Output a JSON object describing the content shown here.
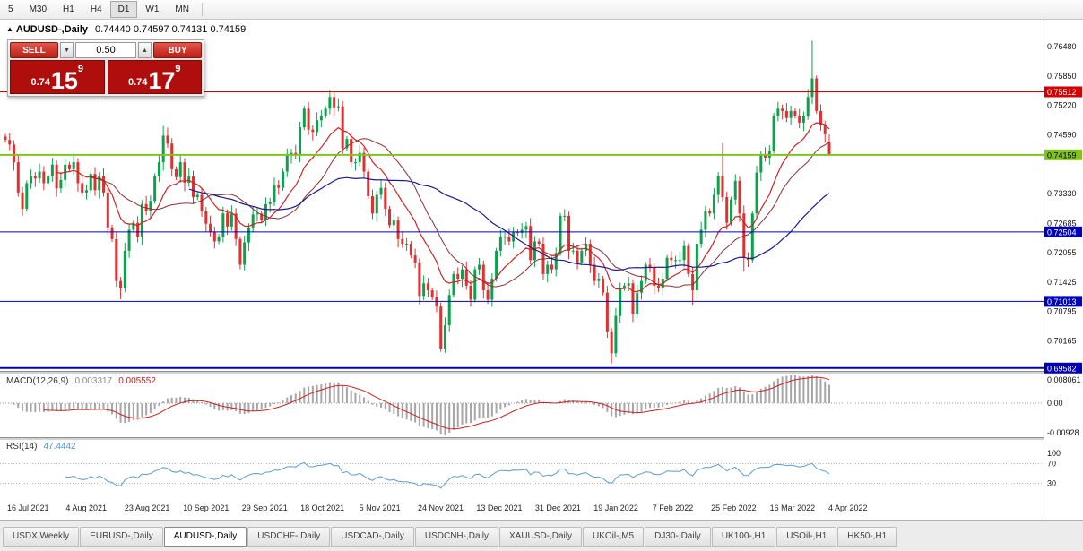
{
  "toolbar": {
    "timeframes": [
      "5",
      "M30",
      "H1",
      "H4",
      "D1",
      "W1",
      "MN"
    ],
    "active": "D1"
  },
  "chart": {
    "collapse_marker": "▲",
    "symbol": "AUDUSD-,Daily",
    "ohlc": "0.74440 0.74597 0.74131 0.74159"
  },
  "trade_panel": {
    "sell_label": "SELL",
    "buy_label": "BUY",
    "volume": "0.50",
    "sell_price_prefix": "0.74",
    "sell_price_big": "15",
    "sell_price_sup": "9",
    "buy_price_prefix": "0.74",
    "buy_price_big": "17",
    "buy_price_sup": "9"
  },
  "indicators": {
    "macd": {
      "name": "MACD(12,26,9)",
      "value_main": "0.003317",
      "value_signal": "0.005552"
    },
    "rsi": {
      "name": "RSI(14)",
      "value": "47.4442"
    }
  },
  "tabs": {
    "active_index": 2,
    "items": [
      "USDX,Weekly",
      "EURUSD-,Daily",
      "AUDUSD-,Daily",
      "USDCHF-,Daily",
      "USDCAD-,Daily",
      "USDCNH-,Daily",
      "XAUUSD-,Daily",
      "UKOil-,M5",
      "DJ30-,Daily",
      "UK100-,H1",
      "USOil-,H1",
      "HK50-,H1"
    ],
    "scroll_left_arrow": "◂"
  },
  "chart_data": {
    "type": "candlestick",
    "title": "AUDUSD-,Daily",
    "symbol": "AUDUSD-",
    "timeframe": "Daily",
    "ohlc_current": {
      "open": 0.7444,
      "high": 0.74597,
      "low": 0.74131,
      "close": 0.74159
    },
    "ylim": [
      0.6952,
      0.7706
    ],
    "y_ticks": [
      0.7648,
      0.7585,
      0.7522,
      0.7459,
      0.7333,
      0.72685,
      0.72055,
      0.71425,
      0.70795,
      0.70165
    ],
    "x_labels": [
      "16 Jul 2021",
      "4 Aug 2021",
      "23 Aug 2021",
      "10 Sep 2021",
      "29 Sep 2021",
      "18 Oct 2021",
      "5 Nov 2021",
      "24 Nov 2021",
      "13 Dec 2021",
      "31 Dec 2021",
      "19 Jan 2022",
      "7 Feb 2022",
      "25 Feb 2022",
      "16 Mar 2022",
      "4 Apr 2022"
    ],
    "levels": [
      {
        "price": 0.75512,
        "color": "#d40000",
        "line_width": 1,
        "text_color": "#ffffff"
      },
      {
        "price": 0.74159,
        "color": "#7fc41c",
        "line_width": 2,
        "text_color": "#000000"
      },
      {
        "price": 0.72504,
        "color": "#0000bb",
        "line_width": 1,
        "text_color": "#ffffff"
      },
      {
        "price": 0.71013,
        "color": "#0000bb",
        "line_width": 1,
        "text_color": "#ffffff"
      },
      {
        "price": 0.69582,
        "color": "#0000bb",
        "line_width": 2,
        "text_color": "#ffffff"
      }
    ],
    "colors": {
      "up": "#0ca24d",
      "down": "#e03131",
      "background": "#ffffff"
    },
    "moving_averages": [
      {
        "period": 13,
        "method": "ema",
        "color": "#cf2323",
        "width": 1.2
      },
      {
        "period": 21,
        "method": "sma",
        "color": "#8d2f2f",
        "width": 1
      },
      {
        "period": 44,
        "method": "sma",
        "color": "#1b1b8e",
        "width": 1.2
      }
    ],
    "macd_panel": {
      "params": [
        12,
        26,
        9
      ],
      "range": [
        -0.00928,
        0.008061
      ],
      "scale_labels": [
        "0.008061",
        "0.00",
        "-0.00928"
      ],
      "histogram_color": "#a6a6a6",
      "signal_color": "#cc2222"
    },
    "rsi_panel": {
      "period": 14,
      "levels": [
        70,
        30
      ],
      "scale_labels": [
        "100",
        "70",
        "30"
      ],
      "line_color": "#5b9bd5"
    },
    "candles": {
      "first_open": 0.7455,
      "closes": [
        0.7448,
        0.7438,
        0.74,
        0.7335,
        0.73,
        0.7355,
        0.737,
        0.7365,
        0.738,
        0.7355,
        0.737,
        0.7395,
        0.7344,
        0.7362,
        0.7395,
        0.7385,
        0.74,
        0.7355,
        0.7335,
        0.734,
        0.7375,
        0.734,
        0.737,
        0.7335,
        0.726,
        0.7235,
        0.7145,
        0.713,
        0.721,
        0.7255,
        0.727,
        0.724,
        0.731,
        0.7295,
        0.7317,
        0.737,
        0.74,
        0.7457,
        0.744,
        0.7385,
        0.7368,
        0.74,
        0.7356,
        0.737,
        0.7325,
        0.733,
        0.7295,
        0.7268,
        0.725,
        0.723,
        0.724,
        0.729,
        0.7262,
        0.729,
        0.7235,
        0.718,
        0.7228,
        0.726,
        0.7288,
        0.729,
        0.7275,
        0.731,
        0.7315,
        0.735,
        0.7345,
        0.738,
        0.7415,
        0.742,
        0.7415,
        0.7475,
        0.7515,
        0.747,
        0.7465,
        0.749,
        0.75,
        0.7515,
        0.754,
        0.7518,
        0.752,
        0.743,
        0.745,
        0.74,
        0.74,
        0.742,
        0.738,
        0.7327,
        0.729,
        0.733,
        0.7345,
        0.73,
        0.7265,
        0.7275,
        0.7235,
        0.7225,
        0.7225,
        0.72,
        0.7185,
        0.7113,
        0.714,
        0.7125,
        0.711,
        0.709,
        0.7,
        0.705,
        0.7115,
        0.716,
        0.715,
        0.717,
        0.7135,
        0.7105,
        0.717,
        0.718,
        0.7125,
        0.7105,
        0.715,
        0.721,
        0.724,
        0.724,
        0.723,
        0.725,
        0.7248,
        0.7255,
        0.7263,
        0.719,
        0.723,
        0.7225,
        0.716,
        0.718,
        0.717,
        0.7205,
        0.7285,
        0.7285,
        0.721,
        0.721,
        0.7185,
        0.721,
        0.7225,
        0.718,
        0.7145,
        0.715,
        0.712,
        0.7035,
        0.699,
        0.707,
        0.713,
        0.7135,
        0.714,
        0.7075,
        0.712,
        0.7145,
        0.718,
        0.7175,
        0.7135,
        0.713,
        0.715,
        0.7195,
        0.719,
        0.719,
        0.719,
        0.722,
        0.716,
        0.7125,
        0.7225,
        0.7255,
        0.7295,
        0.729,
        0.733,
        0.737,
        0.7325,
        0.727,
        0.732,
        0.736,
        0.729,
        0.7195,
        0.719,
        0.729,
        0.7378,
        0.7415,
        0.741,
        0.7425,
        0.75,
        0.7515,
        0.751,
        0.7495,
        0.751,
        0.75,
        0.7485,
        0.75,
        0.754,
        0.758,
        0.751,
        0.748,
        0.746,
        0.7416
      ],
      "overrides": {
        "27": {
          "low": 0.7106
        },
        "37": {
          "high": 0.7478
        },
        "55": {
          "low": 0.717
        },
        "76": {
          "high": 0.7555
        },
        "102": {
          "low": 0.6993
        },
        "142": {
          "low": 0.6968
        },
        "161": {
          "low": 0.7094
        },
        "168": {
          "high": 0.7441
        },
        "173": {
          "low": 0.7165
        },
        "189": {
          "high": 0.7661
        },
        "193": {
          "open": 0.7444,
          "high": 0.74597,
          "low": 0.74131
        }
      }
    }
  }
}
